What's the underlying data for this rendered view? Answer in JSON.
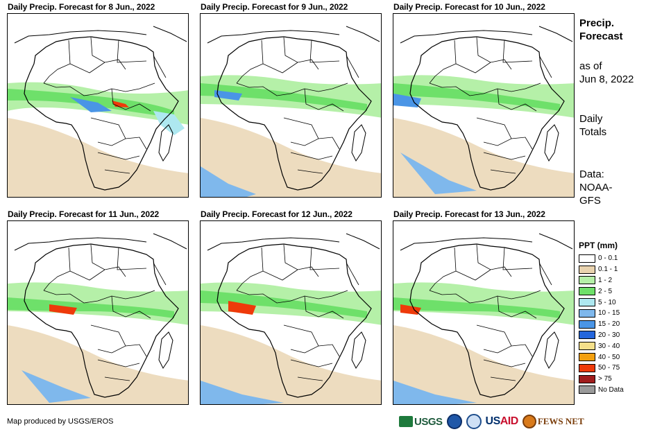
{
  "panels": [
    {
      "title": "Daily Precip. Forecast for 8 Jun., 2022"
    },
    {
      "title": "Daily Precip. Forecast for 9 Jun., 2022"
    },
    {
      "title": "Daily Precip. Forecast for 10 Jun., 2022"
    },
    {
      "title": "Daily Precip. Forecast for 11 Jun., 2022"
    },
    {
      "title": "Daily Precip. Forecast for 12 Jun., 2022"
    },
    {
      "title": "Daily Precip. Forecast for 13 Jun., 2022"
    }
  ],
  "sidebar": {
    "title_line1": "Precip.",
    "title_line2": "Forecast",
    "asof_line1": "as of",
    "asof_line2": "Jun 8, 2022",
    "totals_line1": "Daily",
    "totals_line2": "Totals",
    "data_line1": "Data:",
    "data_line2": "NOAA-",
    "data_line3": "GFS"
  },
  "legend": {
    "title": "PPT (mm)",
    "items": [
      {
        "label": "0 - 0.1",
        "color": "#ffffff"
      },
      {
        "label": "0.1 - 1",
        "color": "#e9d3af"
      },
      {
        "label": "1 - 2",
        "color": "#b5f0a8"
      },
      {
        "label": "2 - 5",
        "color": "#6ee06a"
      },
      {
        "label": "5 - 10",
        "color": "#aee8f0"
      },
      {
        "label": "10 - 15",
        "color": "#7fb8ec"
      },
      {
        "label": "15 - 20",
        "color": "#4a95e6"
      },
      {
        "label": "20 - 30",
        "color": "#2466dc"
      },
      {
        "label": "30 - 40",
        "color": "#f5e08a"
      },
      {
        "label": "40 - 50",
        "color": "#f3a010"
      },
      {
        "label": "50 - 75",
        "color": "#ee3a0a"
      },
      {
        "label": "> 75",
        "color": "#a01c1c"
      },
      {
        "label": "No Data",
        "color": "#9a9a9a"
      }
    ]
  },
  "credit": "Map produced by USGS/EROS",
  "logos": {
    "usgs": "USGS",
    "usaid_u": "US",
    "usaid_rest": "AID",
    "fews": "FEWS NET"
  }
}
